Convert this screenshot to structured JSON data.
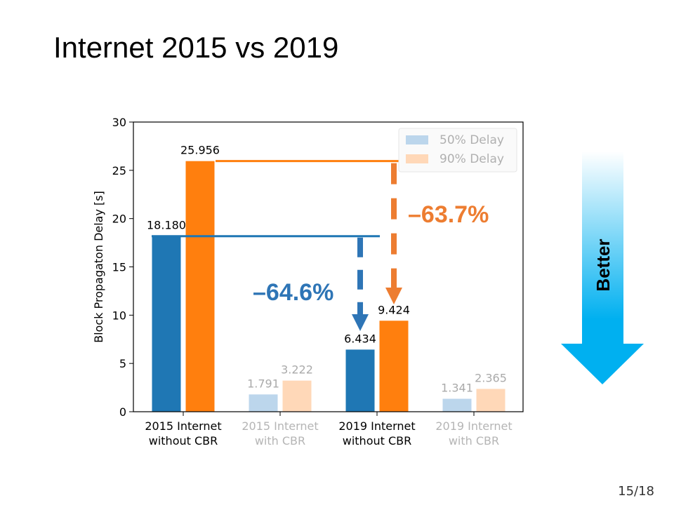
{
  "slide": {
    "title": "Internet 2015 vs 2019",
    "page_number": "15/18"
  },
  "better_arrow": {
    "label": "Better",
    "color_top": "#ffffff",
    "color_bottom": "#00b0f0"
  },
  "chart_data": {
    "type": "bar",
    "ylabel": "Block Propagaton Delay [s]",
    "ylim": [
      0,
      30
    ],
    "yticks": [
      0,
      5,
      10,
      15,
      20,
      25,
      30
    ],
    "categories": [
      {
        "lines": [
          "2015 Internet",
          "without CBR"
        ],
        "faded": false
      },
      {
        "lines": [
          "2015 Internet",
          "with CBR"
        ],
        "faded": true
      },
      {
        "lines": [
          "2019 Internet",
          "without CBR"
        ],
        "faded": false
      },
      {
        "lines": [
          "2019 Internet",
          "with CBR"
        ],
        "faded": true
      }
    ],
    "series": [
      {
        "name": "50% Delay",
        "color": "#1f77b4",
        "faded_color": "#bcd6ec",
        "values": [
          18.18,
          1.791,
          6.434,
          1.341
        ],
        "labels": [
          "18.180",
          "1.791",
          "6.434",
          "1.341"
        ]
      },
      {
        "name": "90% Delay",
        "color": "#ff7f0e",
        "faded_color": "#ffd8b8",
        "values": [
          25.956,
          3.222,
          9.424,
          2.365
        ],
        "labels": [
          "25.956",
          "3.222",
          "9.424",
          "2.365"
        ]
      }
    ],
    "legend": {
      "placement": "top-right",
      "faded": true
    },
    "annotations": [
      {
        "text": "–64.6%",
        "color": "#2e75b6",
        "series": "50% Delay",
        "from_category": 0,
        "to_category": 2
      },
      {
        "text": "–63.7%",
        "color": "#ed7d31",
        "series": "90% Delay",
        "from_category": 0,
        "to_category": 2
      }
    ]
  }
}
